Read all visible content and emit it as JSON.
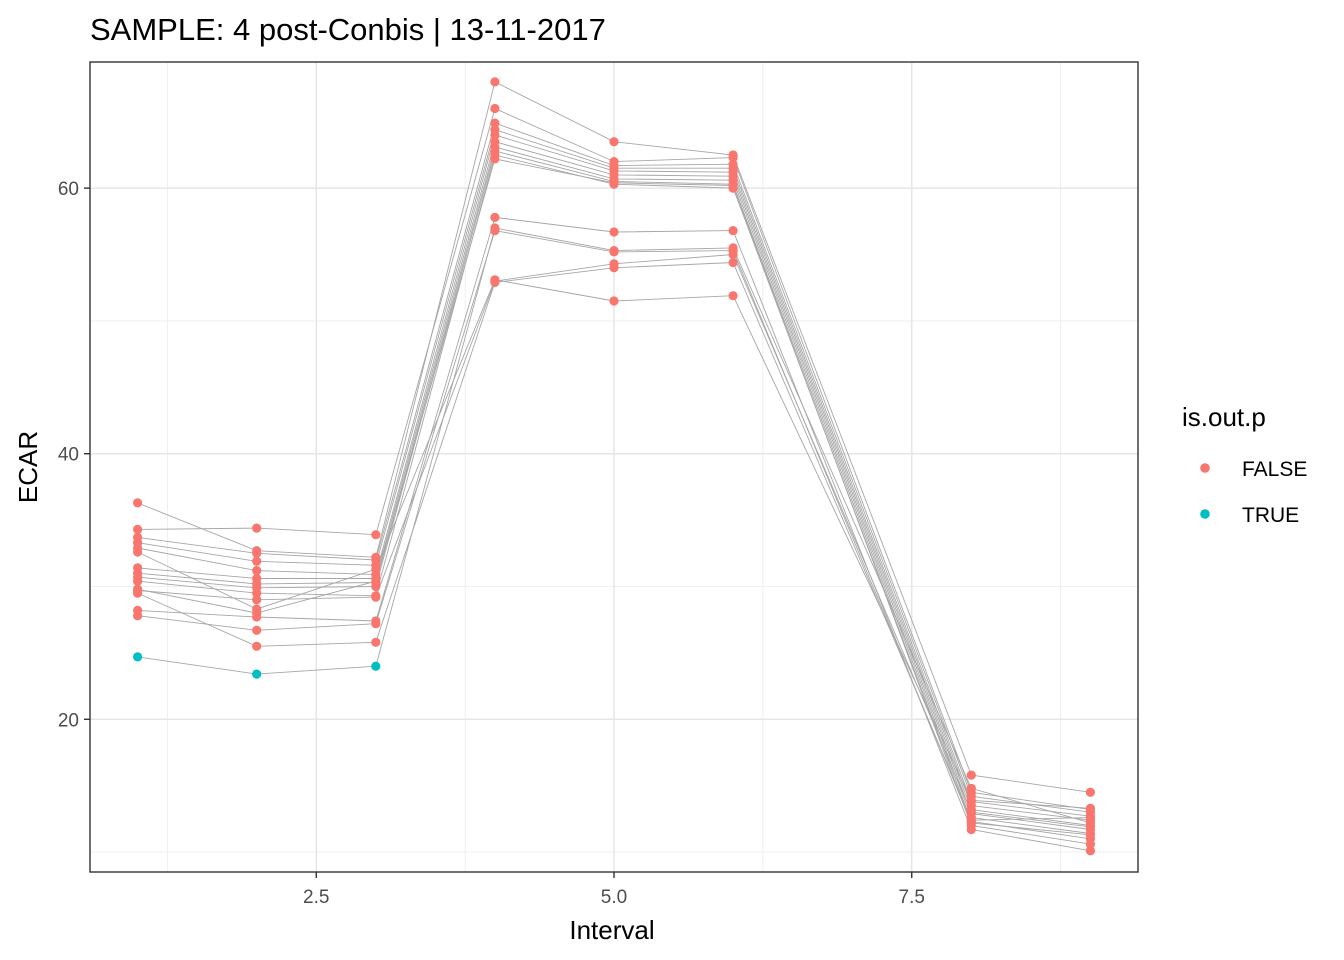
{
  "chart_data": {
    "type": "line",
    "title": "SAMPLE:  4 post-Conbis  | 13-11-2017",
    "xlabel": "Interval",
    "ylabel": "ECAR",
    "xlim": [
      0.6,
      9.4
    ],
    "ylim": [
      8.5,
      69.5
    ],
    "x_ticks": [
      2.5,
      5.0,
      7.5
    ],
    "x_tick_labels": [
      "2.5",
      "5.0",
      "7.5"
    ],
    "y_ticks": [
      20,
      40,
      60
    ],
    "y_tick_labels": [
      "20",
      "40",
      "60"
    ],
    "grid": true,
    "legend": {
      "title": "is.out.p",
      "position": "right",
      "entries": [
        {
          "label": "FALSE",
          "color": "#F8766D"
        },
        {
          "label": "TRUE",
          "color": "#00BFC4"
        }
      ]
    },
    "line_color": "#a6a6a6",
    "intervals": [
      1,
      2,
      3,
      4,
      5,
      6,
      8,
      9
    ],
    "series": [
      {
        "values": [
          36.3,
          32.7,
          32.2,
          68.0,
          63.5,
          62.5,
          15.8,
          14.5
        ],
        "outlier": [
          false,
          false,
          false,
          false,
          false,
          false,
          false,
          false
        ]
      },
      {
        "values": [
          34.3,
          34.4,
          33.9,
          66.0,
          62.0,
          62.3,
          14.5,
          13.2
        ],
        "outlier": [
          false,
          false,
          false,
          false,
          false,
          false,
          false,
          false
        ]
      },
      {
        "values": [
          33.7,
          32.5,
          32.0,
          64.9,
          61.7,
          61.8,
          14.2,
          13.0
        ],
        "outlier": [
          false,
          false,
          false,
          false,
          false,
          false,
          false,
          false
        ]
      },
      {
        "values": [
          33.3,
          31.9,
          31.6,
          64.4,
          61.5,
          61.5,
          13.8,
          12.7
        ],
        "outlier": [
          false,
          false,
          false,
          false,
          false,
          false,
          false,
          false
        ]
      },
      {
        "values": [
          32.9,
          31.2,
          30.9,
          64.0,
          61.3,
          61.2,
          13.5,
          12.4
        ],
        "outlier": [
          false,
          false,
          false,
          false,
          false,
          false,
          false,
          false
        ]
      },
      {
        "values": [
          31.4,
          30.6,
          30.6,
          63.5,
          61.0,
          60.9,
          13.2,
          12.0
        ],
        "outlier": [
          false,
          false,
          false,
          false,
          false,
          false,
          false,
          false
        ]
      },
      {
        "values": [
          31.0,
          30.2,
          30.3,
          63.1,
          60.7,
          60.6,
          12.9,
          11.7
        ],
        "outlier": [
          false,
          false,
          false,
          false,
          false,
          false,
          false,
          false
        ]
      },
      {
        "values": [
          30.7,
          29.9,
          30.0,
          62.8,
          60.5,
          60.3,
          12.6,
          11.4
        ],
        "outlier": [
          false,
          false,
          false,
          false,
          false,
          false,
          false,
          false
        ]
      },
      {
        "values": [
          30.4,
          29.5,
          29.3,
          62.5,
          60.3,
          60.0,
          12.3,
          11.0
        ],
        "outlier": [
          false,
          false,
          false,
          false,
          false,
          false,
          false,
          false
        ]
      },
      {
        "values": [
          29.8,
          28.0,
          30.4,
          62.2,
          60.4,
          60.2,
          12.0,
          10.6
        ],
        "outlier": [
          false,
          false,
          false,
          false,
          false,
          false,
          false,
          false
        ]
      },
      {
        "values": [
          28.2,
          27.7,
          27.4,
          57.8,
          56.7,
          56.8,
          11.7,
          10.1
        ],
        "outlier": [
          false,
          false,
          false,
          false,
          false,
          false,
          false,
          false
        ]
      },
      {
        "values": [
          27.8,
          26.7,
          27.2,
          56.8,
          55.2,
          55.3,
          12.2,
          11.3
        ],
        "outlier": [
          false,
          false,
          false,
          false,
          false,
          false,
          false,
          false
        ]
      },
      {
        "values": [
          29.7,
          29.0,
          29.2,
          53.0,
          54.3,
          55.0,
          13.0,
          11.9
        ],
        "outlier": [
          false,
          false,
          false,
          false,
          false,
          false,
          false,
          false
        ]
      },
      {
        "values": [
          29.5,
          25.5,
          25.8,
          52.9,
          54.0,
          54.4,
          12.4,
          12.6
        ],
        "outlier": [
          false,
          false,
          false,
          false,
          false,
          false,
          false,
          false
        ]
      },
      {
        "values": [
          32.6,
          28.3,
          31.3,
          53.1,
          51.5,
          51.9,
          13.9,
          13.3
        ],
        "outlier": [
          false,
          false,
          false,
          false,
          false,
          false,
          false,
          false
        ]
      },
      {
        "values": [
          24.7,
          23.4,
          24.0,
          57.0,
          55.3,
          55.5,
          14.8,
          12.2
        ],
        "outlier": [
          true,
          true,
          true,
          false,
          false,
          false,
          false,
          false
        ]
      }
    ]
  }
}
